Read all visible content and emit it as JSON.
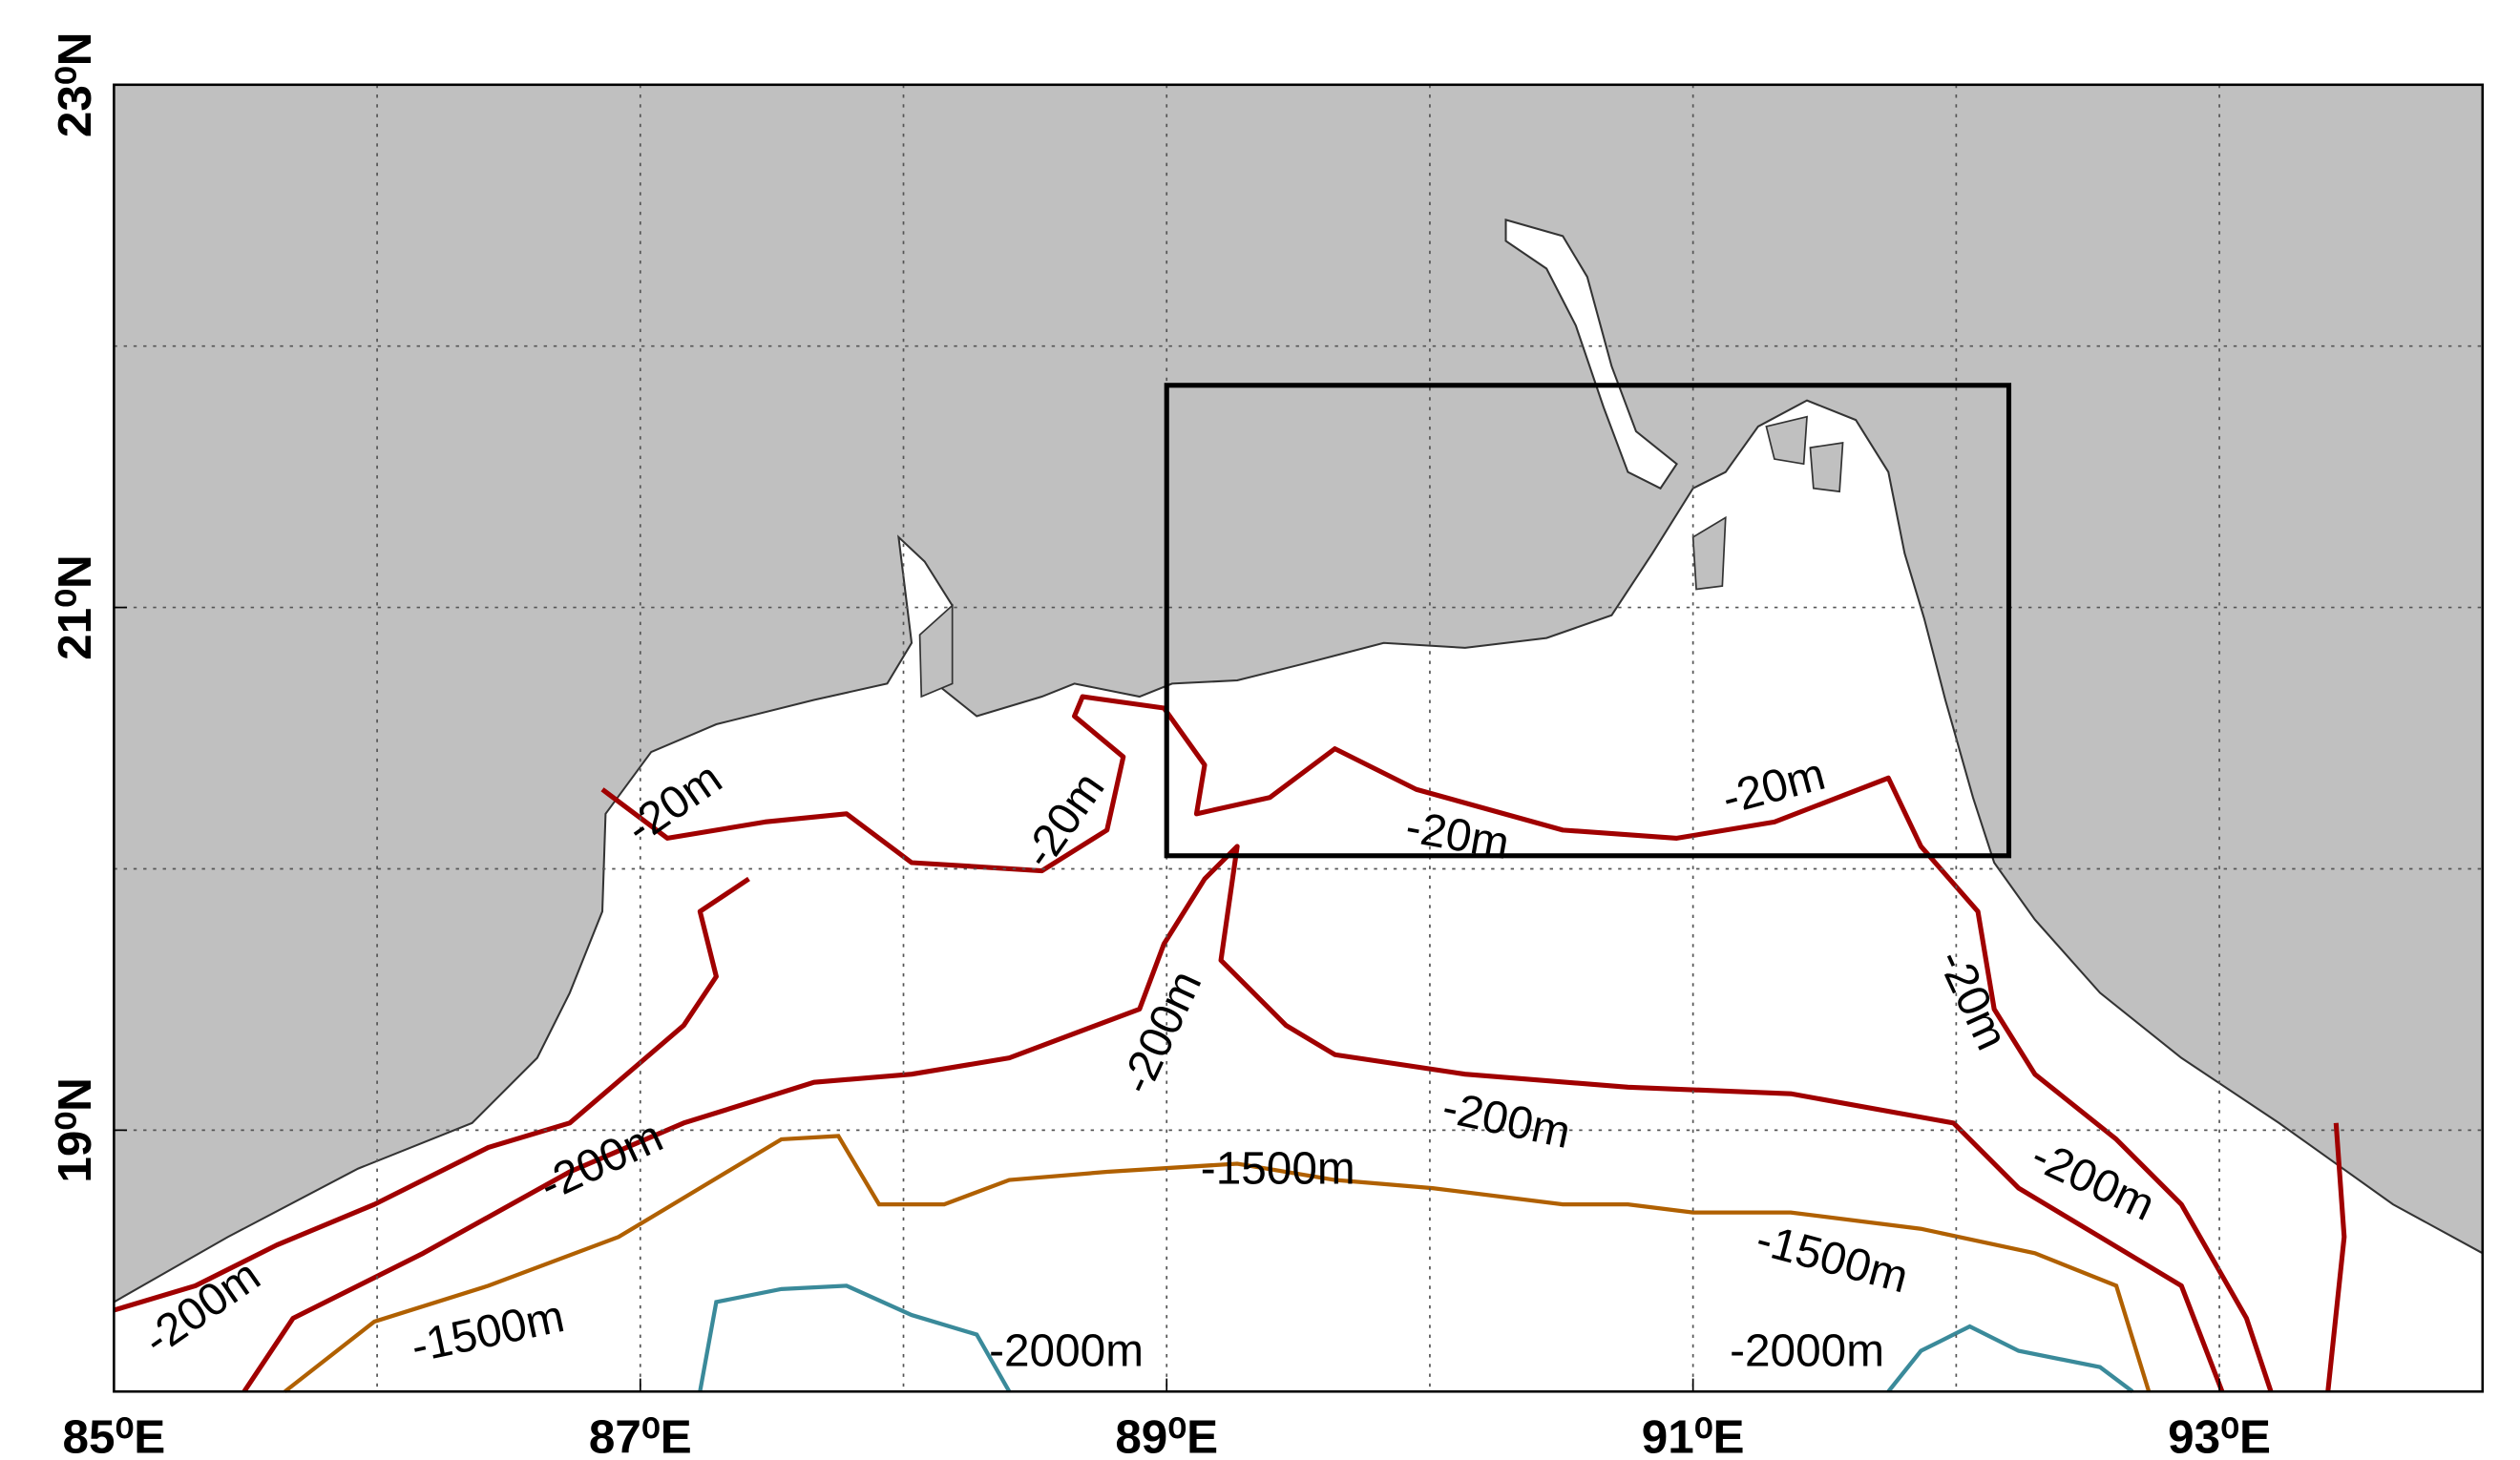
{
  "map": {
    "xlim": [
      85,
      94
    ],
    "ylim": [
      18,
      23
    ],
    "xticks": [
      {
        "value": 85,
        "label": "85⁰E"
      },
      {
        "value": 87,
        "label": "87⁰E"
      },
      {
        "value": 89,
        "label": "89⁰E"
      },
      {
        "value": 91,
        "label": "91⁰E"
      },
      {
        "value": 93,
        "label": "93⁰E"
      }
    ],
    "yticks": [
      {
        "value": 19,
        "label": "19⁰N"
      },
      {
        "value": 21,
        "label": "21⁰N"
      },
      {
        "value": 23,
        "label": "23⁰N"
      }
    ],
    "xgrid": [
      86,
      87,
      88,
      89,
      90,
      91,
      92,
      93
    ],
    "ygrid": [
      19,
      20,
      21,
      22
    ],
    "box": {
      "lon": [
        89,
        92.2
      ],
      "lat": [
        20.05,
        21.85
      ]
    },
    "contour_labels": [
      "-20m",
      "-20m",
      "-20m",
      "-20m",
      "-20m",
      "-200m",
      "-200m",
      "-200m",
      "-200m",
      "-200m",
      "-1500m",
      "-1500m",
      "-1500m",
      "-2000m",
      "-2000m"
    ]
  }
}
